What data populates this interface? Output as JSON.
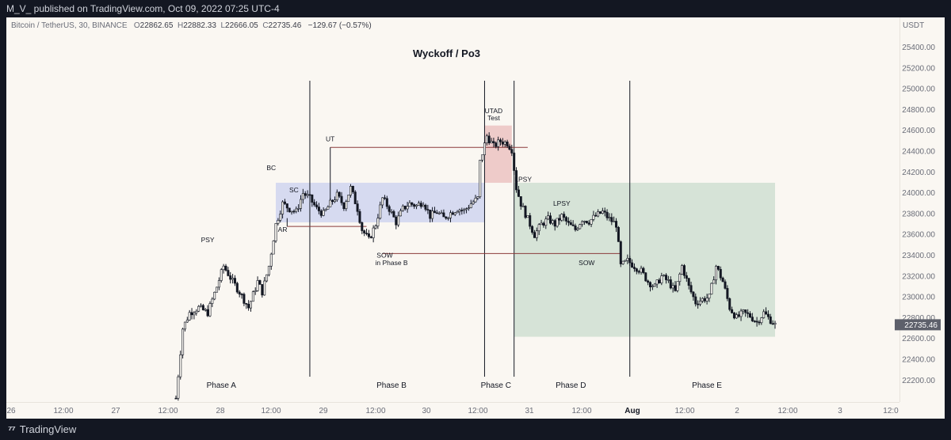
{
  "header": {
    "publisher_line": "M_V_ published on TradingView.com, Oct 09, 2022 07:25 UTC-4"
  },
  "footer": {
    "brand": "TradingView",
    "logo_icon": "tradingview-logo-icon"
  },
  "chart_info": {
    "symbol": "Bitcoin / TetherUS, 30, BINANCE",
    "o_label": "O",
    "o_value": "22862.65",
    "h_label": "H",
    "h_value": "22882.33",
    "l_label": "L",
    "l_value": "22666.05",
    "c_label": "C",
    "c_value": "22735.46",
    "change": "−129.67 (−0.57%)"
  },
  "colors": {
    "background": "#faf7f2",
    "candle": "#131722",
    "accumulation_box": "#c9d0ef",
    "utad_box": "#e8b8b8",
    "distribution_box": "#c6dacc",
    "level_line": "#8b3a3a",
    "price_label_bg": "#5d606b"
  },
  "chart_data": {
    "type": "candlestick",
    "title": "Wyckoff / Po3",
    "currency": "USDT",
    "last_price": "22735.46",
    "ylim": [
      22000,
      25600
    ],
    "y_ticks": [
      "22200.00",
      "22400.00",
      "22600.00",
      "22800.00",
      "23000.00",
      "23200.00",
      "23400.00",
      "23600.00",
      "23800.00",
      "24000.00",
      "24200.00",
      "24400.00",
      "24600.00",
      "24800.00",
      "25000.00",
      "25200.00",
      "25400.00"
    ],
    "x_ticks": [
      "26",
      "12:00",
      "27",
      "12:00",
      "28",
      "12:00",
      "29",
      "12:00",
      "30",
      "12:00",
      "31",
      "12:00",
      "Aug",
      "12:00",
      "2",
      "12:00",
      "3",
      "12:0"
    ],
    "price_path": [
      [
        0,
        22030
      ],
      [
        3,
        22700
      ],
      [
        6,
        22850
      ],
      [
        10,
        22900
      ],
      [
        14,
        22850
      ],
      [
        18,
        23100
      ],
      [
        21,
        23300
      ],
      [
        25,
        23150
      ],
      [
        28,
        23050
      ],
      [
        32,
        22900
      ],
      [
        36,
        23150
      ],
      [
        38,
        23050
      ],
      [
        41,
        23300
      ],
      [
        44,
        23700
      ],
      [
        47,
        23900
      ],
      [
        50,
        23850
      ],
      [
        53,
        23820
      ],
      [
        56,
        24000
      ],
      [
        59,
        23950
      ],
      [
        62,
        23850
      ],
      [
        65,
        23800
      ],
      [
        68,
        23900
      ],
      [
        71,
        23980
      ],
      [
        74,
        23880
      ],
      [
        77,
        24050
      ],
      [
        80,
        23850
      ],
      [
        82,
        23650
      ],
      [
        85,
        23550
      ],
      [
        88,
        23700
      ],
      [
        91,
        23950
      ],
      [
        94,
        23850
      ],
      [
        97,
        23720
      ],
      [
        100,
        23850
      ],
      [
        103,
        23900
      ],
      [
        106,
        23880
      ],
      [
        109,
        23920
      ],
      [
        112,
        23780
      ],
      [
        115,
        23820
      ],
      [
        118,
        23760
      ],
      [
        121,
        23810
      ],
      [
        124,
        23850
      ],
      [
        127,
        23830
      ],
      [
        130,
        23900
      ],
      [
        133,
        23950
      ],
      [
        134,
        24300
      ],
      [
        137,
        24550
      ],
      [
        140,
        24450
      ],
      [
        143,
        24500
      ],
      [
        146,
        24480
      ],
      [
        148,
        24420
      ],
      [
        150,
        24050
      ],
      [
        152,
        23900
      ],
      [
        155,
        23750
      ],
      [
        158,
        23600
      ],
      [
        161,
        23700
      ],
      [
        164,
        23750
      ],
      [
        167,
        23700
      ],
      [
        170,
        23780
      ],
      [
        173,
        23700
      ],
      [
        176,
        23650
      ],
      [
        179,
        23750
      ],
      [
        182,
        23730
      ],
      [
        185,
        23780
      ],
      [
        188,
        23820
      ],
      [
        191,
        23750
      ],
      [
        194,
        23700
      ],
      [
        196,
        23300
      ],
      [
        199,
        23350
      ],
      [
        202,
        23300
      ],
      [
        205,
        23250
      ],
      [
        208,
        23150
      ],
      [
        211,
        23100
      ],
      [
        214,
        23200
      ],
      [
        217,
        23150
      ],
      [
        220,
        23050
      ],
      [
        223,
        23300
      ],
      [
        226,
        23100
      ],
      [
        229,
        22950
      ],
      [
        232,
        22980
      ],
      [
        235,
        23000
      ],
      [
        238,
        23300
      ],
      [
        241,
        23150
      ],
      [
        244,
        22900
      ],
      [
        247,
        22800
      ],
      [
        250,
        22850
      ],
      [
        253,
        22820
      ],
      [
        256,
        22760
      ],
      [
        259,
        22850
      ],
      [
        262,
        22780
      ],
      [
        264,
        22735
      ]
    ],
    "annotations": [
      {
        "text": "PSY",
        "x": 14,
        "y": 23530
      },
      {
        "text": "BC",
        "x": 42,
        "y": 24220
      },
      {
        "text": "SC",
        "x": 52,
        "y": 24010
      },
      {
        "text": "AR",
        "x": 47,
        "y": 23630
      },
      {
        "text": "UT",
        "x": 68,
        "y": 24500
      },
      {
        "text": "SOW",
        "x": 92,
        "y": 23380
      },
      {
        "text": "in Phase B",
        "x": 95,
        "y": 23310
      },
      {
        "text": "UTAD",
        "x": 140,
        "y": 24770
      },
      {
        "text": "Test",
        "x": 140,
        "y": 24700
      },
      {
        "text": "LPSY",
        "x": 153,
        "y": 24110
      },
      {
        "text": "LPSY",
        "x": 170,
        "y": 23880
      },
      {
        "text": "SOW",
        "x": 181,
        "y": 23310
      }
    ],
    "phase_labels": [
      {
        "text": "Phase A",
        "x": 20
      },
      {
        "text": "Phase B",
        "x": 95
      },
      {
        "text": "Phase C",
        "x": 141
      },
      {
        "text": "Phase D",
        "x": 174
      },
      {
        "text": "Phase E",
        "x": 234
      }
    ],
    "phase_dividers_x": [
      59,
      136,
      149,
      200
    ],
    "zones": [
      {
        "name": "accumulation-box",
        "x0": 44,
        "x1": 136,
        "y0": 23720,
        "y1": 24100
      },
      {
        "name": "utad-box",
        "x0": 136,
        "x1": 148,
        "y0": 24100,
        "y1": 24650
      },
      {
        "name": "distribution-box",
        "x0": 149,
        "x1": 264,
        "y0": 22620,
        "y1": 24100
      }
    ],
    "levels": [
      {
        "name": "ut-level",
        "x0": 68,
        "x1": 155,
        "y": 24440
      },
      {
        "name": "ar-level",
        "x0": 49,
        "x1": 84,
        "y": 23680
      },
      {
        "name": "sow-level",
        "x0": 91,
        "x1": 196,
        "y": 23420
      }
    ]
  }
}
